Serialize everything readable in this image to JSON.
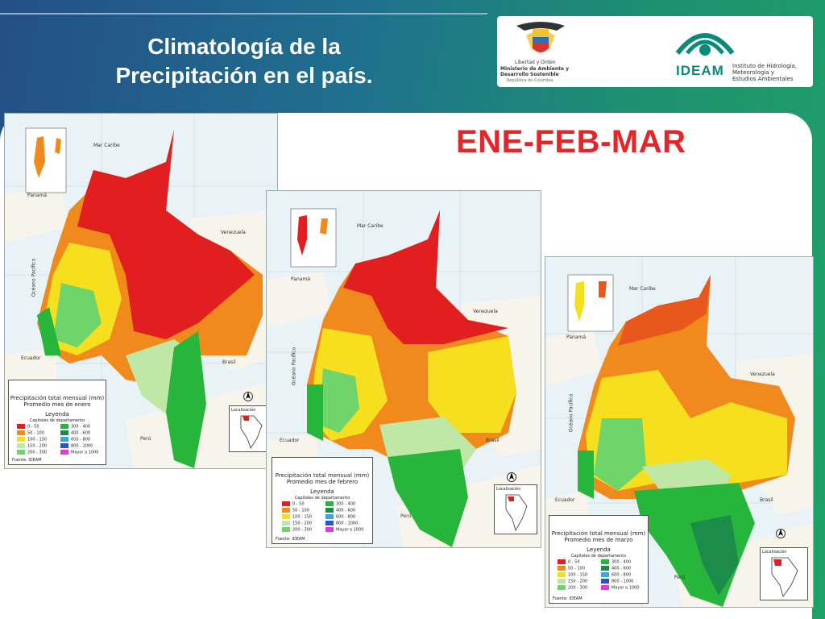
{
  "slide": {
    "title_line1": "Climatología de la",
    "title_line2": "Precipitación en el país.",
    "season": "ENE-FEB-MAR"
  },
  "logos": {
    "ministry_line1": "Libertad y Orden",
    "ministry_line2": "Ministerio de Ambiente y",
    "ministry_line3": "Desarrollo Sostenible",
    "ministry_line4": "República de Colombia",
    "ideam_name": "IDEAM",
    "ideam_line1": "Instituto de Hidrología,",
    "ideam_line2": "Meteorología y",
    "ideam_line3": "Estudios Ambientales"
  },
  "maps": [
    {
      "legend_title": "Precipitación total mensual (mm)",
      "legend_sub": "Promedio mes de enero",
      "leyenda": "Leyenda",
      "capitales": "Capitales de departamento",
      "source": "Fuente: IDEAM",
      "localizacion": "Localización",
      "labels": {
        "caribe": "Mar Caribe",
        "panama": "Panamá",
        "pacifico": "Océano Pacífico",
        "venezuela": "Venezuela",
        "ecuador": "Ecuador",
        "brasil": "Brasil",
        "peru": "Perú"
      }
    },
    {
      "legend_title": "Precipitación total mensual (mm)",
      "legend_sub": "Promedio mes de febrero",
      "leyenda": "Leyenda",
      "capitales": "Capitales de departamento",
      "source": "Fuente: IDEAM",
      "localizacion": "Localización",
      "labels": {
        "caribe": "Mar Caribe",
        "panama": "Panamá",
        "pacifico": "Océano Pacífico",
        "venezuela": "Venezuela",
        "ecuador": "Ecuador",
        "brasil": "Brasil",
        "peru": "Perú"
      }
    },
    {
      "legend_title": "Precipitación total mensual (mm)",
      "legend_sub": "Promedio mes de marzo",
      "leyenda": "Leyenda",
      "capitales": "Capitales de departamento",
      "source": "Fuente: IDEAM",
      "localizacion": "Localización",
      "labels": {
        "caribe": "Mar Caribe",
        "panama": "Panamá",
        "pacifico": "Océano Pacífico",
        "venezuela": "Venezuela",
        "ecuador": "Ecuador",
        "brasil": "Brasil",
        "peru": "Perú"
      }
    }
  ],
  "legend_classes": [
    {
      "range": "0 - 50",
      "color": "#e11f1f"
    },
    {
      "range": "300 - 400",
      "color": "#27b53b"
    },
    {
      "range": "50 - 100",
      "color": "#f08a1d"
    },
    {
      "range": "400 - 600",
      "color": "#1b8c4a"
    },
    {
      "range": "100 - 150",
      "color": "#f5df1e"
    },
    {
      "range": "600 - 800",
      "color": "#3aa7d6"
    },
    {
      "range": "150 - 200",
      "color": "#bfe8a6"
    },
    {
      "range": "800 - 1000",
      "color": "#2a52c9"
    },
    {
      "range": "200 - 300",
      "color": "#6fd46a"
    },
    {
      "range": "Mayor a 1000",
      "color": "#e23ad8"
    }
  ]
}
